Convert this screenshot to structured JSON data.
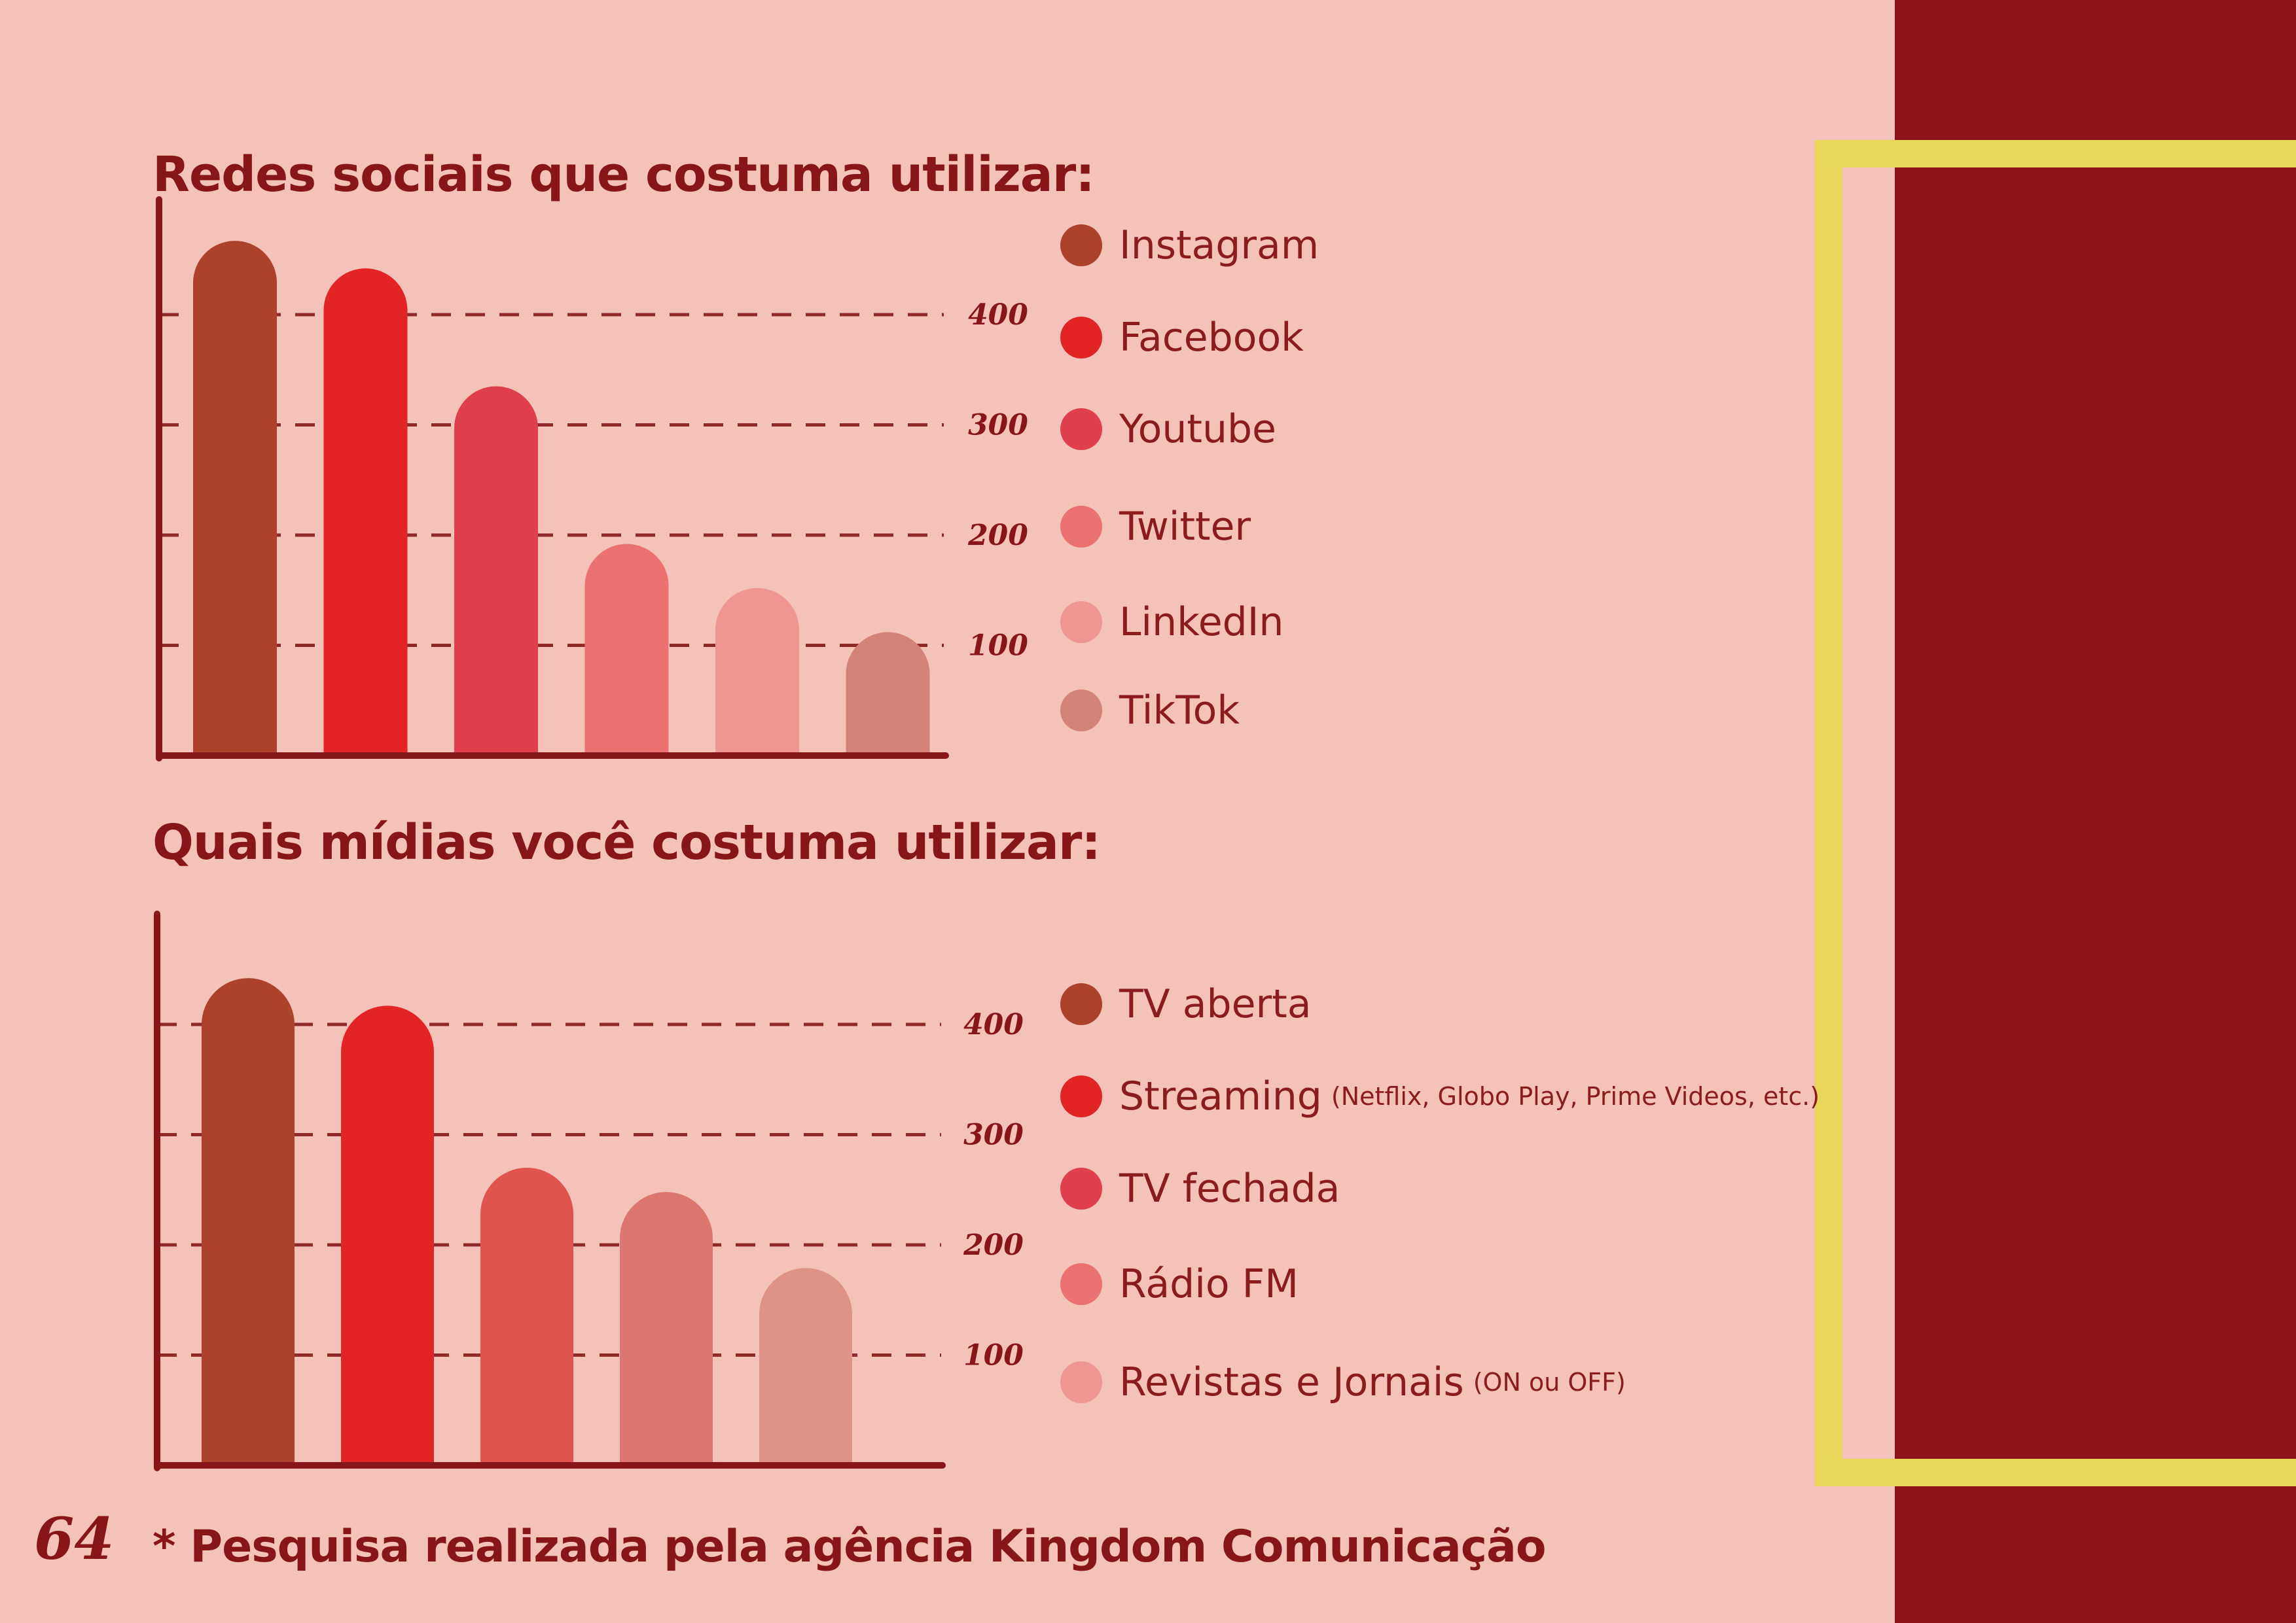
{
  "colors": {
    "background": "#f4c2b9",
    "panel": "#8a1418",
    "frame": "#e9d659",
    "text": "#86161a"
  },
  "chart_data": [
    {
      "type": "bar",
      "title": "Redes sociais que costuma utilizar:",
      "categories": [
        "Instagram",
        "Facebook",
        "Youtube",
        "Twitter",
        "LinkedIn",
        "TikTok"
      ],
      "values": [
        467,
        442,
        335,
        192,
        152,
        112
      ],
      "colors": [
        "#ad422b",
        "#e22424",
        "#e0404b",
        "#ea7371",
        "#ef9594",
        "#d4837b"
      ],
      "yticks": [
        "100",
        "200",
        "300",
        "400"
      ],
      "ylim": [
        0,
        500
      ],
      "grid": true,
      "legend": "right"
    },
    {
      "type": "bar",
      "title": "Quais mídias você costuma utilizar:",
      "categories": [
        "TV aberta",
        "Streaming",
        "TV fechada",
        "Rádio FM",
        "Revistas e Jornais"
      ],
      "category_notes": [
        "",
        "(Netflix, Globo Play, Prime Videos, etc.)",
        "",
        "",
        "(ON ou OFF)"
      ],
      "values": [
        442,
        417,
        270,
        248,
        179
      ],
      "colors": [
        "#ad422b",
        "#e22424",
        "#e0544e",
        "#db776e",
        "#df9287"
      ],
      "legend_colors": [
        "#ad422b",
        "#e22424",
        "#e0404b",
        "#ea7371",
        "#ef9594"
      ],
      "yticks": [
        "100",
        "200",
        "300",
        "400"
      ],
      "ylim": [
        0,
        500
      ],
      "grid": true,
      "legend": "right"
    }
  ],
  "page": {
    "number": "64",
    "footnote": "* Pesquisa realizada pela agência Kingdom Comunicação"
  }
}
